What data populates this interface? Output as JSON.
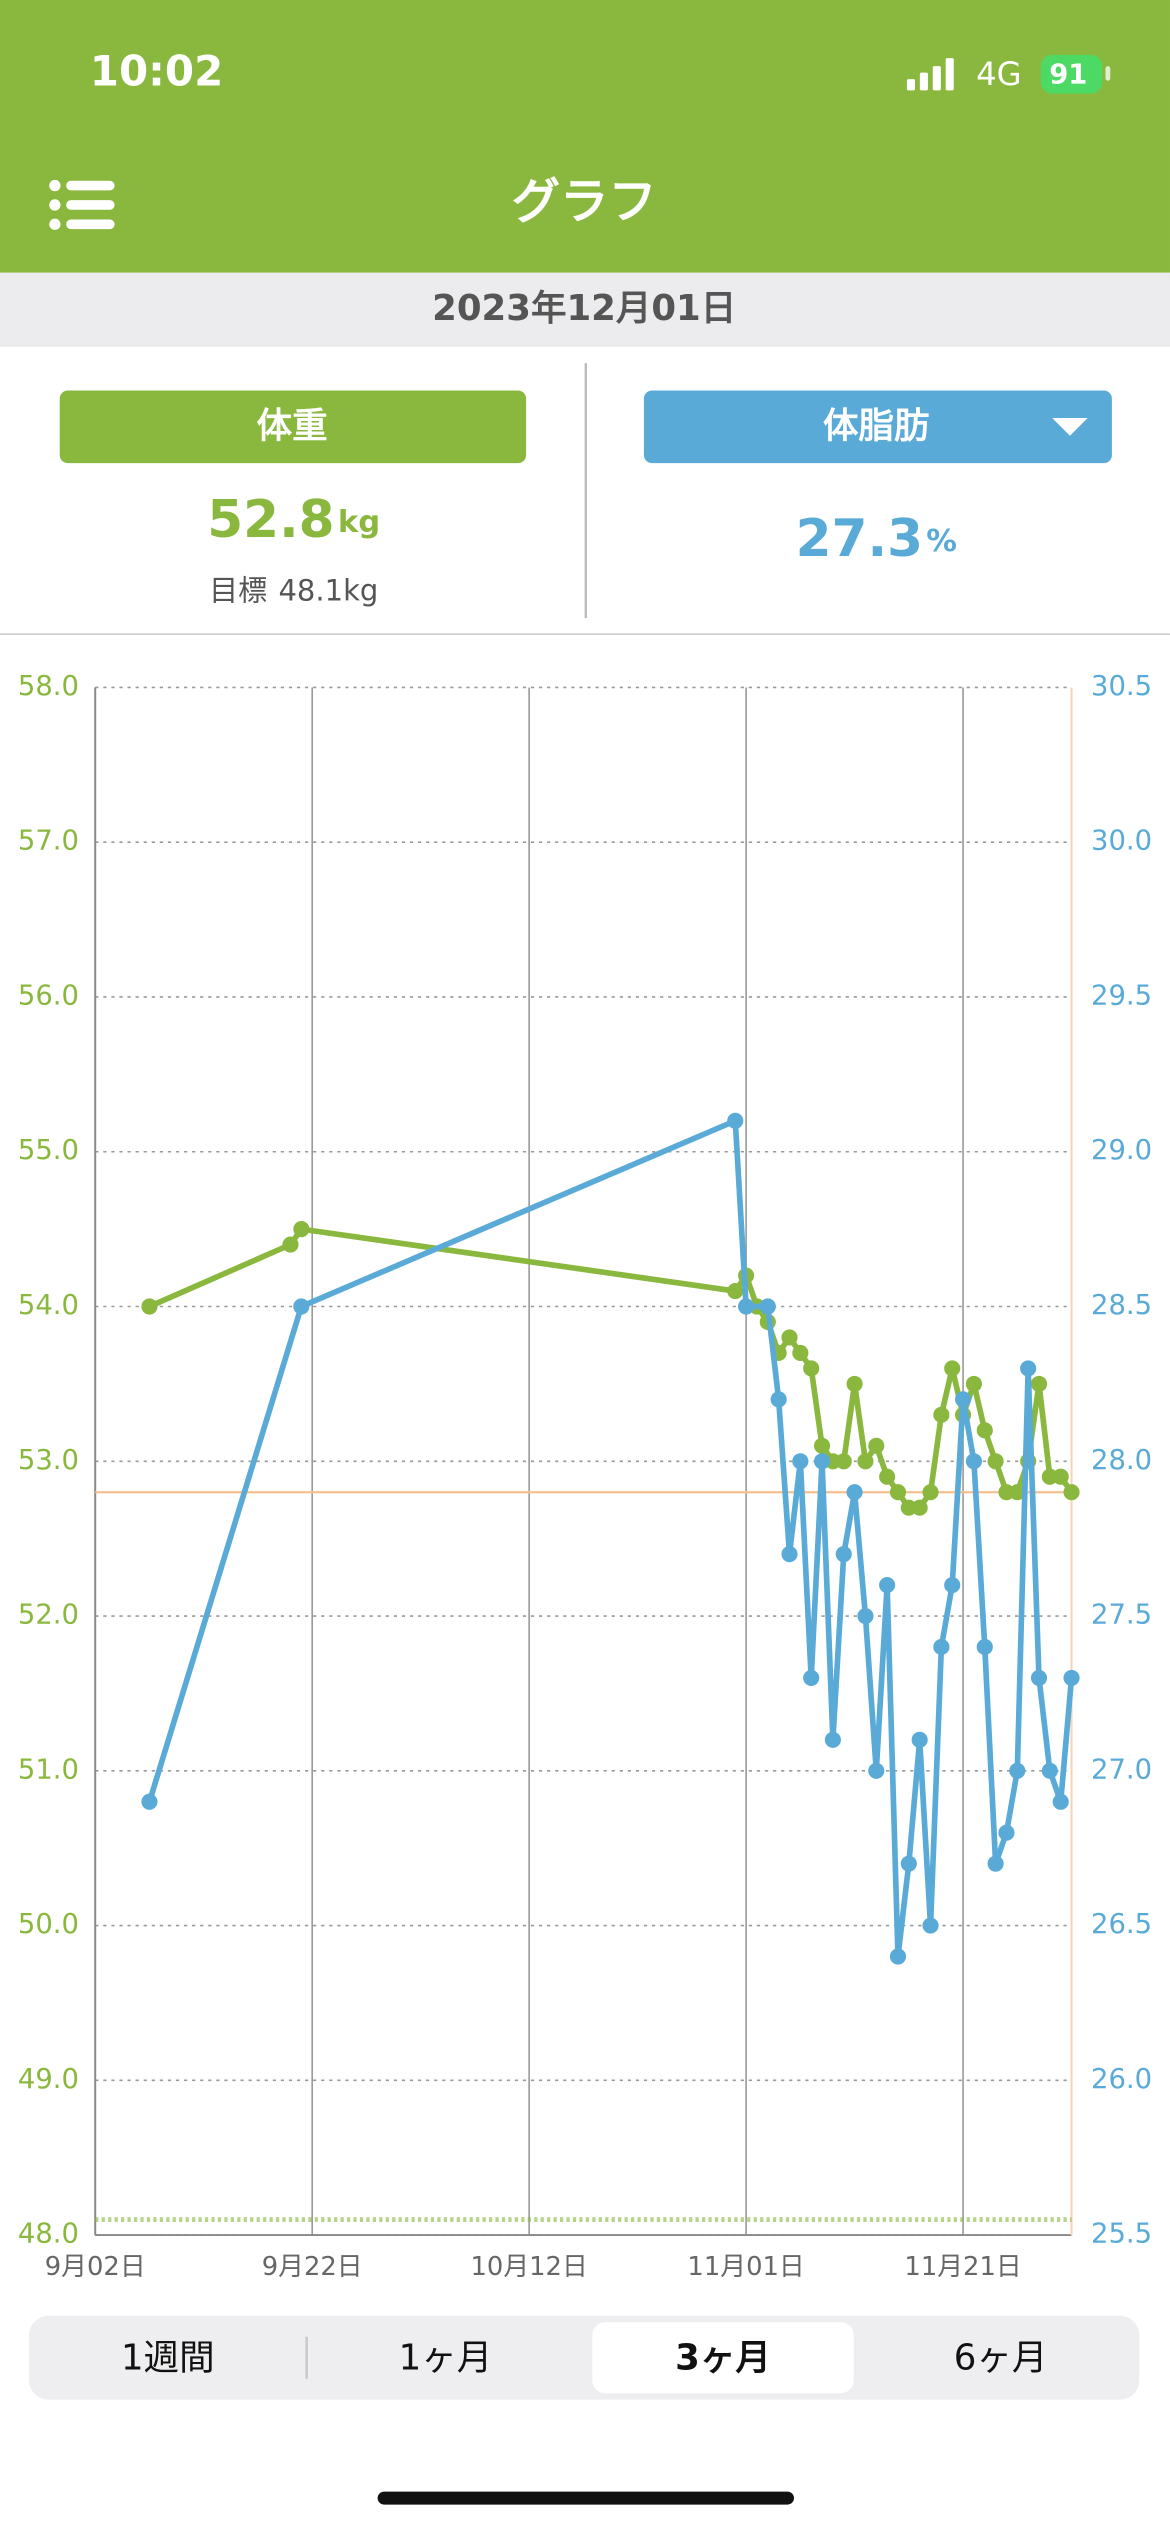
{
  "status_bar": {
    "time": "10:02",
    "network": "4G",
    "battery": "91"
  },
  "header": {
    "title": "グラフ"
  },
  "date": "2023年12月01日",
  "weight_panel": {
    "value": 52.8,
    "unit": "kg",
    "goal_label": "目標",
    "goal": 48.1,
    "goal_unit": "kg"
  },
  "fat_panel": {
    "value": 27.3,
    "unit": "%"
  },
  "chart_data": {
    "type": "line",
    "xlim": [
      "09-02",
      "12-01"
    ],
    "xticks": [
      {
        "value": "09-02",
        "label": "9月02日"
      },
      {
        "value": "09-22",
        "label": "9月22日"
      },
      {
        "value": "10-12",
        "label": "10月12日"
      },
      {
        "value": "11-01",
        "label": "11月01日"
      },
      {
        "value": "11-21",
        "label": "11月21日"
      }
    ],
    "ylim": [
      48,
      58
    ],
    "yticks": [
      {
        "value": 48,
        "label": "48.0"
      },
      {
        "value": 49,
        "label": "49.0"
      },
      {
        "value": 50,
        "label": "50.0"
      },
      {
        "value": 51,
        "label": "51.0"
      },
      {
        "value": 52,
        "label": "52.0"
      },
      {
        "value": 53,
        "label": "53.0"
      },
      {
        "value": 54,
        "label": "54.0"
      },
      {
        "value": 55,
        "label": "55.0"
      },
      {
        "value": 56,
        "label": "56.0"
      },
      {
        "value": 57,
        "label": "57.0"
      },
      {
        "value": 58,
        "label": "58.0"
      }
    ],
    "y2lim": [
      25.5,
      30.5
    ],
    "y2ticks": [
      25.5,
      {
        "value": 26,
        "label": "26.0"
      },
      26.5,
      {
        "value": 27,
        "label": "27.0"
      },
      27.5,
      {
        "value": 28,
        "label": "28.0"
      },
      28.5,
      {
        "value": 29,
        "label": "29.0"
      },
      29.5,
      {
        "value": 30,
        "label": "30.0"
      },
      30.5
    ],
    "grid": true,
    "series": [
      {
        "name": "体重",
        "color": "#8ab83e",
        "axis": "y",
        "x": [
          "09-07",
          "09-20",
          "09-21",
          "10-31",
          "11-01",
          "11-02",
          "11-03",
          "11-04",
          "11-05",
          "11-06",
          "11-07",
          "11-08",
          "11-09",
          "11-10",
          "11-11",
          "11-12",
          "11-13",
          "11-14",
          "11-15",
          "11-16",
          "11-17",
          "11-18",
          "11-19",
          "11-20",
          "11-21",
          "11-22",
          "11-23",
          "11-24",
          "11-25",
          "11-26",
          "11-27",
          "11-28",
          "11-29",
          "11-30",
          "12-01"
        ],
        "values": [
          54.0,
          54.4,
          54.5,
          54.1,
          54.2,
          54.0,
          53.9,
          53.7,
          53.8,
          53.7,
          53.6,
          53.1,
          53.0,
          53.0,
          53.5,
          53.0,
          53.1,
          52.9,
          52.8,
          52.7,
          52.7,
          52.8,
          53.3,
          53.6,
          53.3,
          53.5,
          53.2,
          53.0,
          52.8,
          52.8,
          53.0,
          53.5,
          52.9,
          52.9,
          52.8
        ]
      },
      {
        "name": "体脂肪",
        "color": "#5aaad8",
        "axis": "y2",
        "x": [
          "09-07",
          "09-21",
          "10-31",
          "11-01",
          "11-03",
          "11-04",
          "11-05",
          "11-06",
          "11-07",
          "11-08",
          "11-09",
          "11-10",
          "11-11",
          "11-12",
          "11-13",
          "11-14",
          "11-15",
          "11-16",
          "11-17",
          "11-18",
          "11-19",
          "11-20",
          "11-21",
          "11-22",
          "11-23",
          "11-24",
          "11-25",
          "11-26",
          "11-27",
          "11-28",
          "11-29",
          "11-30",
          "12-01"
        ],
        "values": [
          26.9,
          28.5,
          29.1,
          28.5,
          28.5,
          28.2,
          27.7,
          28.0,
          27.3,
          28.0,
          27.1,
          27.7,
          27.9,
          27.5,
          27.0,
          27.6,
          26.4,
          26.7,
          27.1,
          26.5,
          27.4,
          27.6,
          28.2,
          28.0,
          27.4,
          26.7,
          26.8,
          27.0,
          28.3,
          27.3,
          27.0,
          26.9,
          27.3
        ]
      }
    ]
  },
  "tabs": [
    "1週間",
    "1ヶ月",
    "3ヶ月",
    "6ヶ月"
  ],
  "selected_tab": 2
}
